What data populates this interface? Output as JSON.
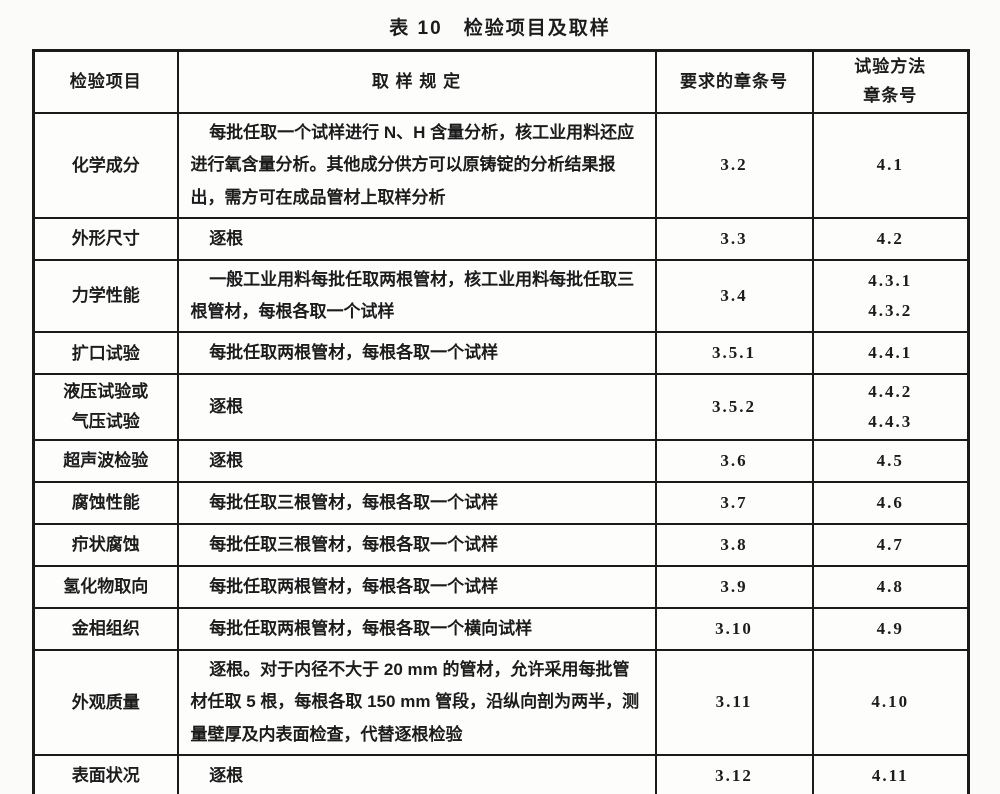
{
  "title": "表 10　检验项目及取样",
  "colors": {
    "border": "#1b1b1b",
    "text": "#1c1c1c",
    "background": "#fbfbfa"
  },
  "table": {
    "headers": {
      "item": "检验项目",
      "sampling": "取 样 规 定",
      "requirement": "要求的章条号",
      "method": "试验方法\n章条号"
    },
    "rows": [
      {
        "item": "化学成分",
        "sampling": "每批任取一个试样进行 N、H 含量分析，核工业用料还应进行氧含量分析。其他成分供方可以原铸锭的分析结果报出，需方可在成品管材上取样分析",
        "requirement": "3.2",
        "method": "4.1"
      },
      {
        "item": "外形尺寸",
        "sampling": "逐根",
        "requirement": "3.3",
        "method": "4.2"
      },
      {
        "item": "力学性能",
        "sampling": "一般工业用料每批任取两根管材，核工业用料每批任取三根管材，每根各取一个试样",
        "requirement": "3.4",
        "method": "4.3.1\n4.3.2"
      },
      {
        "item": "扩口试验",
        "sampling": "每批任取两根管材，每根各取一个试样",
        "requirement": "3.5.1",
        "method": "4.4.1"
      },
      {
        "item": "液压试验或\n气压试验",
        "sampling": "逐根",
        "requirement": "3.5.2",
        "method": "4.4.2\n4.4.3"
      },
      {
        "item": "超声波检验",
        "sampling": "逐根",
        "requirement": "3.6",
        "method": "4.5"
      },
      {
        "item": "腐蚀性能",
        "sampling": "每批任取三根管材，每根各取一个试样",
        "requirement": "3.7",
        "method": "4.6"
      },
      {
        "item": "疖状腐蚀",
        "sampling": "每批任取三根管材，每根各取一个试样",
        "requirement": "3.8",
        "method": "4.7"
      },
      {
        "item": "氢化物取向",
        "sampling": "每批任取两根管材，每根各取一个试样",
        "requirement": "3.9",
        "method": "4.8"
      },
      {
        "item": "金相组织",
        "sampling": "每批任取两根管材，每根各取一个横向试样",
        "requirement": "3.10",
        "method": "4.9"
      },
      {
        "item": "外观质量",
        "sampling": "逐根。对于内径不大于 20 mm 的管材，允许采用每批管材任取 5 根，每根各取 150 mm 管段，沿纵向剖为两半，测量壁厚及内表面检查，代替逐根检验",
        "requirement": "3.11",
        "method": "4.10"
      },
      {
        "item": "表面状况",
        "sampling": "逐根",
        "requirement": "3.12",
        "method": "4.11"
      }
    ]
  }
}
